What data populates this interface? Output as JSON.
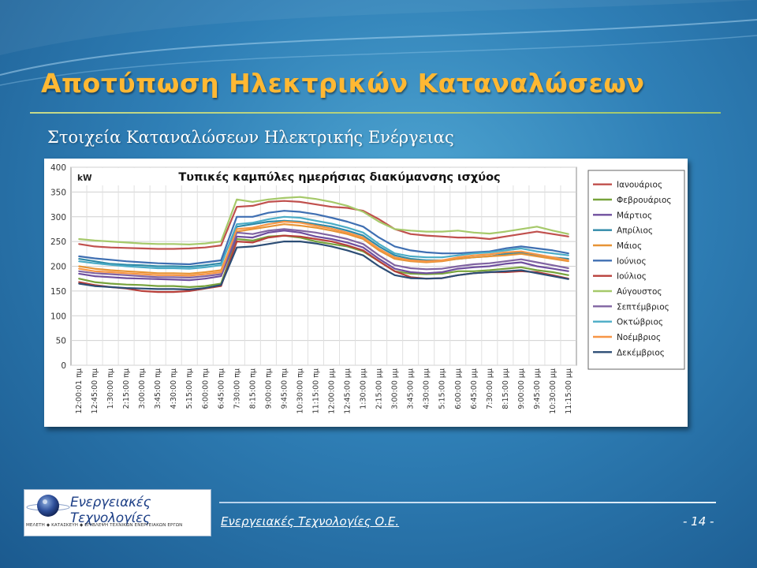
{
  "slide": {
    "title": "Αποτύπωση Ηλεκτρικών Καταναλώσεων",
    "subtitle": "Στοιχεία Καταναλώσεων Ηλεκτρικής Ενέργειας",
    "footer_company": "Ενεργειακές Τεχνολογίες Ο.Ε.",
    "page_number": "- 14 -",
    "logo_name": "Ενεργειακές Τεχνολογίες",
    "logo_tagline": "ΜΕΛΕΤΗ ◆ ΚΑΤΑΣΚΕΥΗ ◆ ΕΠΙΒΛΕΨΗ ΤΕΧΝΙΚΩΝ ΕΝΕΡΓΕΙΑΚΩΝ ΕΡΓΩΝ",
    "colors": {
      "title": "#ffb833",
      "background": "#2f7fb6"
    }
  },
  "chart_data": {
    "type": "line",
    "title": "Τυπικές καμπύλες ημερήσιας διακύμανσης ισχύος",
    "ylabel": "kW",
    "ylim": [
      0,
      400
    ],
    "yticks": [
      0,
      50,
      100,
      150,
      200,
      250,
      300,
      350,
      400
    ],
    "grid": true,
    "legend_position": "right",
    "x_tick_labels": [
      "12:00:01 πμ",
      "12:45:00 πμ",
      "1:30:00 πμ",
      "2:15:00 πμ",
      "3:00:00 πμ",
      "3:45:00 πμ",
      "4:30:00 πμ",
      "5:15:00 πμ",
      "6:00:00 πμ",
      "6:45:00 πμ",
      "7:30:00 πμ",
      "8:15:00 πμ",
      "9:00:00 πμ",
      "9:45:00 πμ",
      "10:30:00 πμ",
      "11:15:00 πμ",
      "12:00:00 μμ",
      "12:45:00 μμ",
      "1:30:00 μμ",
      "2:15:00 μμ",
      "3:00:00 μμ",
      "3:45:00 μμ",
      "4:30:00 μμ",
      "5:15:00 μμ",
      "6:00:00 μμ",
      "6:45:00 μμ",
      "7:30:00 μμ",
      "8:15:00 μμ",
      "9:00:00 μμ",
      "9:45:00 μμ",
      "10:30:00 μμ",
      "11:15:00 μμ"
    ],
    "series": [
      {
        "name": "Ιανουάριος",
        "color": "#c0504d",
        "values": [
          245,
          240,
          238,
          237,
          236,
          235,
          235,
          236,
          238,
          242,
          320,
          322,
          330,
          332,
          330,
          325,
          320,
          318,
          312,
          295,
          275,
          265,
          262,
          260,
          258,
          258,
          255,
          260,
          265,
          270,
          265,
          260
        ]
      },
      {
        "name": "Φεβρουάριος",
        "color": "#77a33b",
        "values": [
          175,
          168,
          165,
          163,
          162,
          160,
          160,
          158,
          160,
          165,
          255,
          252,
          260,
          262,
          258,
          250,
          245,
          240,
          230,
          210,
          190,
          185,
          184,
          185,
          190,
          190,
          192,
          195,
          198,
          192,
          188,
          182
        ]
      },
      {
        "name": "Μάρτιος",
        "color": "#6f4f9e",
        "values": [
          185,
          180,
          178,
          176,
          175,
          174,
          173,
          172,
          175,
          180,
          260,
          258,
          268,
          272,
          268,
          260,
          255,
          248,
          238,
          215,
          195,
          188,
          186,
          188,
          195,
          198,
          200,
          205,
          208,
          200,
          195,
          190
        ]
      },
      {
        "name": "Απρίλιος",
        "color": "#2f8aa8",
        "values": [
          215,
          210,
          205,
          203,
          202,
          200,
          200,
          199,
          202,
          206,
          280,
          285,
          290,
          292,
          290,
          285,
          280,
          272,
          262,
          240,
          222,
          215,
          212,
          212,
          215,
          218,
          220,
          225,
          228,
          222,
          218,
          215
        ]
      },
      {
        "name": "Μάιος",
        "color": "#e79436",
        "values": [
          200,
          195,
          192,
          190,
          188,
          186,
          186,
          185,
          188,
          192,
          270,
          275,
          280,
          285,
          282,
          278,
          272,
          265,
          255,
          232,
          215,
          210,
          208,
          210,
          215,
          218,
          220,
          222,
          225,
          220,
          215,
          210
        ]
      },
      {
        "name": "Ιούνιος",
        "color": "#3f6fb2",
        "values": [
          220,
          216,
          213,
          210,
          208,
          206,
          205,
          204,
          208,
          212,
          300,
          300,
          308,
          312,
          310,
          305,
          298,
          290,
          280,
          258,
          240,
          232,
          228,
          226,
          226,
          228,
          230,
          236,
          240,
          236,
          232,
          226
        ]
      },
      {
        "name": "Ιούλιος",
        "color": "#b8403b",
        "values": [
          168,
          162,
          158,
          155,
          150,
          148,
          148,
          150,
          155,
          160,
          250,
          248,
          258,
          262,
          260,
          255,
          250,
          242,
          232,
          210,
          190,
          178,
          175,
          176,
          182,
          186,
          188,
          188,
          190,
          188,
          182,
          175
        ]
      },
      {
        "name": "Αύγουστος",
        "color": "#a6c96a",
        "values": [
          255,
          252,
          250,
          248,
          246,
          245,
          245,
          244,
          246,
          250,
          335,
          330,
          335,
          338,
          340,
          336,
          330,
          322,
          310,
          290,
          275,
          272,
          270,
          270,
          272,
          268,
          266,
          270,
          275,
          280,
          272,
          265
        ]
      },
      {
        "name": "Σεπτέμβριος",
        "color": "#8064a2",
        "values": [
          190,
          186,
          184,
          182,
          180,
          178,
          178,
          177,
          180,
          184,
          268,
          265,
          272,
          275,
          272,
          268,
          262,
          255,
          245,
          222,
          202,
          196,
          194,
          195,
          200,
          204,
          206,
          210,
          214,
          208,
          202,
          196
        ]
      },
      {
        "name": "Οκτώβριος",
        "color": "#4bacc6",
        "values": [
          210,
          206,
          203,
          200,
          198,
          196,
          196,
          195,
          198,
          202,
          285,
          288,
          295,
          300,
          298,
          292,
          286,
          278,
          268,
          245,
          226,
          220,
          218,
          218,
          222,
          226,
          228,
          232,
          236,
          230,
          226,
          222
        ]
      },
      {
        "name": "Νοέμβριος",
        "color": "#f79646",
        "values": [
          195,
          190,
          188,
          186,
          184,
          182,
          182,
          181,
          184,
          188,
          275,
          278,
          285,
          290,
          288,
          282,
          276,
          268,
          258,
          235,
          218,
          212,
          210,
          212,
          218,
          222,
          224,
          228,
          230,
          224,
          218,
          212
        ]
      },
      {
        "name": "Δεκέμβριος",
        "color": "#2c4d75",
        "values": [
          165,
          160,
          158,
          156,
          155,
          154,
          154,
          153,
          156,
          162,
          238,
          240,
          245,
          250,
          250,
          246,
          240,
          232,
          222,
          200,
          182,
          176,
          175,
          176,
          182,
          186,
          188,
          190,
          192,
          186,
          180,
          174
        ]
      }
    ]
  }
}
